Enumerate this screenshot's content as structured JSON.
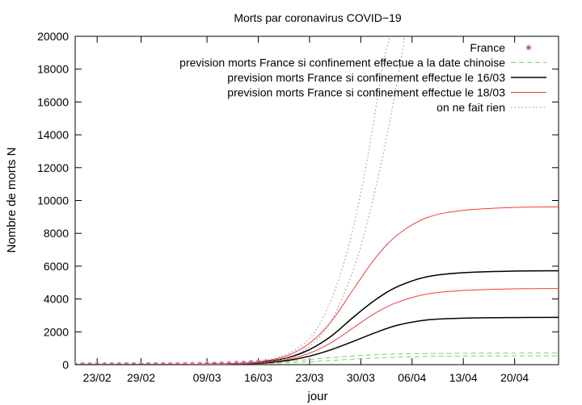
{
  "chart_data": {
    "type": "line",
    "title": "Morts par coronavirus COVID−19",
    "xlabel": "jour",
    "ylabel": "Nombre de morts N",
    "x_range": [
      "2020-02-20",
      "2020-04-26"
    ],
    "ylim": [
      0,
      20000
    ],
    "y_ticks": [
      0,
      2000,
      4000,
      6000,
      8000,
      10000,
      12000,
      14000,
      16000,
      18000,
      20000
    ],
    "x_ticks": [
      {
        "date": "2020-02-23",
        "label": "23/02"
      },
      {
        "date": "2020-02-29",
        "label": "29/02"
      },
      {
        "date": "2020-03-09",
        "label": "09/03"
      },
      {
        "date": "2020-03-16",
        "label": "16/03"
      },
      {
        "date": "2020-03-23",
        "label": "23/03"
      },
      {
        "date": "2020-03-30",
        "label": "30/03"
      },
      {
        "date": "2020-04-06",
        "label": "06/04"
      },
      {
        "date": "2020-04-13",
        "label": "13/04"
      },
      {
        "date": "2020-04-20",
        "label": "20/04"
      }
    ],
    "grid": false,
    "legend_position": "top-right",
    "series": [
      {
        "name": "France",
        "style": "points",
        "color": "#b040a0",
        "x": [
          "2020-02-20",
          "2020-02-21",
          "2020-02-22",
          "2020-02-23",
          "2020-02-24",
          "2020-02-25",
          "2020-02-26",
          "2020-02-27",
          "2020-02-28",
          "2020-02-29",
          "2020-03-01",
          "2020-03-02",
          "2020-03-03",
          "2020-03-04",
          "2020-03-05",
          "2020-03-06",
          "2020-03-07",
          "2020-03-08",
          "2020-03-09",
          "2020-03-10",
          "2020-03-11",
          "2020-03-12",
          "2020-03-13",
          "2020-03-14",
          "2020-03-15",
          "2020-03-16",
          "2020-03-17"
        ],
        "y": [
          0,
          0,
          0,
          0,
          0,
          0,
          1,
          1,
          2,
          2,
          2,
          2,
          3,
          4,
          6,
          9,
          11,
          16,
          25,
          33,
          48,
          61,
          79,
          91,
          127,
          148,
          175
        ]
      },
      {
        "name": "prevision morts France si confinement effectue  a la date chinoise",
        "style": "dashed",
        "color": "#7ccf6e",
        "curves": [
          {
            "x": [
              "2020-02-20",
              "2020-03-01",
              "2020-03-06",
              "2020-03-11",
              "2020-03-14",
              "2020-03-17",
              "2020-03-20",
              "2020-03-23",
              "2020-03-26",
              "2020-03-29",
              "2020-04-01",
              "2020-04-04",
              "2020-04-08",
              "2020-04-13",
              "2020-04-20",
              "2020-04-26"
            ],
            "y": [
              0,
              2,
              8,
              30,
              62,
              118,
              205,
              318,
              430,
              530,
              605,
              650,
              680,
              695,
              703,
              705
            ]
          },
          {
            "x": [
              "2020-02-20",
              "2020-03-01",
              "2020-03-06",
              "2020-03-11",
              "2020-03-14",
              "2020-03-17",
              "2020-03-20",
              "2020-03-23",
              "2020-03-26",
              "2020-03-29",
              "2020-04-01",
              "2020-04-04",
              "2020-04-08",
              "2020-04-13",
              "2020-04-20",
              "2020-04-26"
            ],
            "y": [
              0,
              2,
              5,
              15,
              30,
              60,
              110,
              175,
              255,
              335,
              405,
              455,
              495,
              520,
              532,
              535
            ]
          }
        ]
      },
      {
        "name": "prevision morts France si confinement effectue  le  16/03",
        "style": "solid",
        "color": "#000000",
        "curves": [
          {
            "x": [
              "2020-02-20",
              "2020-03-01",
              "2020-03-06",
              "2020-03-11",
              "2020-03-14",
              "2020-03-17",
              "2020-03-20",
              "2020-03-23",
              "2020-03-26",
              "2020-03-29",
              "2020-04-01",
              "2020-04-04",
              "2020-04-08",
              "2020-04-13",
              "2020-04-20",
              "2020-04-26"
            ],
            "y": [
              0,
              2,
              8,
              35,
              80,
              180,
              420,
              920,
              1750,
              2900,
              3950,
              4750,
              5350,
              5600,
              5700,
              5720
            ]
          },
          {
            "x": [
              "2020-02-20",
              "2020-03-01",
              "2020-03-06",
              "2020-03-11",
              "2020-03-14",
              "2020-03-17",
              "2020-03-20",
              "2020-03-23",
              "2020-03-26",
              "2020-03-29",
              "2020-04-01",
              "2020-04-04",
              "2020-04-08",
              "2020-04-13",
              "2020-04-20",
              "2020-04-26"
            ],
            "y": [
              0,
              2,
              6,
              22,
              50,
              110,
              250,
              520,
              920,
              1420,
              1950,
              2400,
              2720,
              2830,
              2870,
              2880
            ]
          }
        ]
      },
      {
        "name": "prevision morts France si confinement effectue  le  18/03",
        "style": "solid",
        "color": "#f03c3c",
        "curves": [
          {
            "x": [
              "2020-02-20",
              "2020-03-01",
              "2020-03-06",
              "2020-03-11",
              "2020-03-14",
              "2020-03-17",
              "2020-03-20",
              "2020-03-23",
              "2020-03-26",
              "2020-03-29",
              "2020-04-01",
              "2020-04-04",
              "2020-04-08",
              "2020-04-13",
              "2020-04-20",
              "2020-04-26"
            ],
            "y": [
              0,
              2,
              8,
              38,
              95,
              230,
              560,
              1300,
              2650,
              4600,
              6500,
              7900,
              8950,
              9400,
              9580,
              9610
            ]
          },
          {
            "x": [
              "2020-02-20",
              "2020-03-01",
              "2020-03-06",
              "2020-03-11",
              "2020-03-14",
              "2020-03-17",
              "2020-03-20",
              "2020-03-23",
              "2020-03-26",
              "2020-03-29",
              "2020-04-01",
              "2020-04-04",
              "2020-04-08",
              "2020-04-13",
              "2020-04-20",
              "2020-04-26"
            ],
            "y": [
              0,
              2,
              6,
              25,
              60,
              140,
              320,
              700,
              1350,
              2250,
              3150,
              3800,
              4300,
              4520,
              4620,
              4640
            ]
          }
        ]
      },
      {
        "name": "on ne fait rien",
        "style": "dotted",
        "color": "#8a8a8a",
        "curves": [
          {
            "x": [
              "2020-02-20",
              "2020-03-01",
              "2020-03-06",
              "2020-03-11",
              "2020-03-14",
              "2020-03-17",
              "2020-03-20",
              "2020-03-23",
              "2020-03-25",
              "2020-03-27",
              "2020-03-29",
              "2020-03-31",
              "2020-04-02",
              "2020-04-03"
            ],
            "y": [
              0,
              2,
              8,
              40,
              100,
              260,
              650,
              1600,
              3000,
              5200,
              8400,
              12800,
              18200,
              20000
            ]
          },
          {
            "x": [
              "2020-02-20",
              "2020-03-01",
              "2020-03-06",
              "2020-03-11",
              "2020-03-14",
              "2020-03-17",
              "2020-03-20",
              "2020-03-23",
              "2020-03-26",
              "2020-03-29",
              "2020-03-31",
              "2020-04-02",
              "2020-04-04",
              "2020-04-05"
            ],
            "y": [
              0,
              2,
              6,
              28,
              70,
              180,
              440,
              1100,
              2700,
              5800,
              8900,
              12700,
              17300,
              20000
            ]
          }
        ]
      }
    ]
  }
}
